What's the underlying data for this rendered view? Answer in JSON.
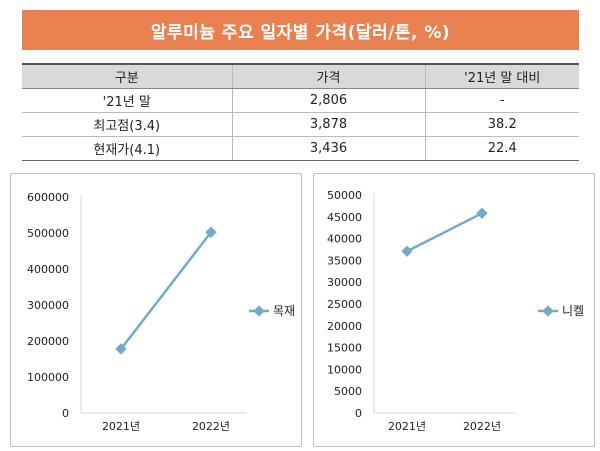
{
  "header": {
    "title": "알루미늄 주요 일자별 가격(달러/톤, %)"
  },
  "table": {
    "columns": [
      "구분",
      "가격",
      "'21년 말 대비"
    ],
    "rows": [
      [
        "'21년 말",
        "2,806",
        "-"
      ],
      [
        "최고점(3.4)",
        "3,878",
        "38.2"
      ],
      [
        "현재가(4.1)",
        "3,436",
        "22.4"
      ]
    ]
  },
  "chart_data": [
    {
      "type": "line",
      "categories": [
        "2021년",
        "2022년"
      ],
      "series": [
        {
          "name": "목재",
          "values": [
            178000,
            502000
          ],
          "color": "#72aac9"
        }
      ],
      "ylim": [
        0,
        600000
      ],
      "yticks": [
        "0",
        "100000",
        "200000",
        "300000",
        "400000",
        "500000",
        "600000"
      ],
      "legend": "right",
      "grid": false
    },
    {
      "type": "line",
      "categories": [
        "2021년",
        "2022년"
      ],
      "series": [
        {
          "name": "니켈",
          "values": [
            37100,
            45800
          ],
          "color": "#72aac9"
        }
      ],
      "ylim": [
        0,
        50000
      ],
      "yticks": [
        "0",
        "5000",
        "10000",
        "15000",
        "20000",
        "25000",
        "30000",
        "35000",
        "40000",
        "45000",
        "50000"
      ],
      "legend": "right",
      "grid": false
    }
  ]
}
